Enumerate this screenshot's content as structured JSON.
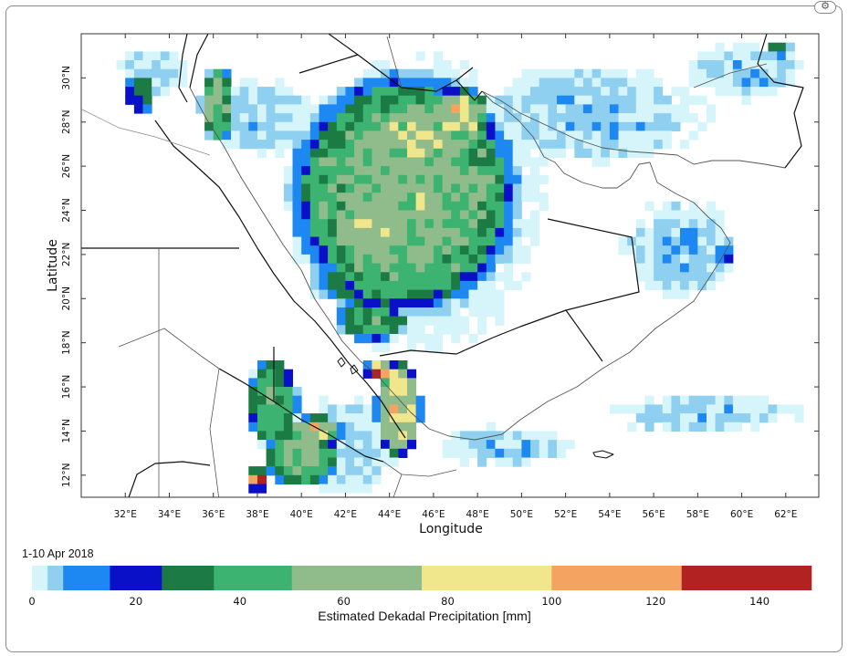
{
  "map": {
    "period": "1-10 Apr 2018",
    "y_axis_title": "Latitude",
    "x_axis_title": "Longitude",
    "lon_ticks": [
      "32°E",
      "34°E",
      "36°E",
      "38°E",
      "40°E",
      "42°E",
      "44°E",
      "46°E",
      "48°E",
      "50°E",
      "52°E",
      "54°E",
      "56°E",
      "58°E",
      "60°E",
      "62°E"
    ],
    "lat_ticks": [
      "12°N",
      "14°N",
      "16°N",
      "18°N",
      "20°N",
      "22°N",
      "24°N",
      "26°N",
      "28°N",
      "30°N"
    ],
    "lon_range": [
      30.0,
      63.5
    ],
    "lat_range": [
      11.0,
      32.0
    ]
  },
  "colorbar": {
    "title": "Estimated Dekadal Precipitation [mm]",
    "tick_labels": [
      "0",
      "20",
      "40",
      "60",
      "80",
      "100",
      "120",
      "140"
    ],
    "tick_values": [
      0,
      20,
      40,
      60,
      80,
      100,
      120,
      140
    ],
    "bins": [
      {
        "from": 0,
        "to": 3,
        "color": "#d6f5fa"
      },
      {
        "from": 3,
        "to": 6,
        "color": "#8fd0f0"
      },
      {
        "from": 6,
        "to": 15,
        "color": "#1e88f2"
      },
      {
        "from": 15,
        "to": 25,
        "color": "#0a10c8"
      },
      {
        "from": 25,
        "to": 35,
        "color": "#1c7a45"
      },
      {
        "from": 35,
        "to": 50,
        "color": "#3cb371"
      },
      {
        "from": 50,
        "to": 75,
        "color": "#8fbc8a"
      },
      {
        "from": 75,
        "to": 100,
        "color": "#f0e68c"
      },
      {
        "from": 100,
        "to": 125,
        "color": "#f4a460"
      },
      {
        "from": 125,
        "to": 150,
        "color": "#b22222"
      }
    ],
    "max": 150
  },
  "rain_regions": [
    {
      "lon": 44.5,
      "lat": 25.0,
      "rlon": 4.6,
      "rlat": 4.8,
      "value": 60
    },
    {
      "lon": 45.0,
      "lat": 27.5,
      "rlon": 2.8,
      "rlat": 1.4,
      "value": 70
    },
    {
      "lon": 47.0,
      "lat": 28.6,
      "rlon": 1.2,
      "rlat": 1.0,
      "value": 90
    },
    {
      "lon": 43.0,
      "lat": 23.2,
      "rlon": 1.6,
      "rlat": 0.9,
      "value": 82
    },
    {
      "lon": 44.0,
      "lat": 21.0,
      "rlon": 3.2,
      "rlat": 1.2,
      "value": 40
    },
    {
      "lon": 43.0,
      "lat": 19.2,
      "rlon": 1.4,
      "rlat": 0.8,
      "value": 45
    },
    {
      "lon": 44.2,
      "lat": 15.2,
      "rlon": 0.9,
      "rlat": 2.0,
      "value": 85
    },
    {
      "lon": 43.3,
      "lat": 17.0,
      "rlon": 0.5,
      "rlat": 0.4,
      "value": 130
    },
    {
      "lon": 38.5,
      "lat": 15.5,
      "rlon": 1.0,
      "rlat": 1.8,
      "value": 45
    },
    {
      "lon": 39.8,
      "lat": 13.0,
      "rlon": 1.5,
      "rlat": 1.2,
      "value": 60
    },
    {
      "lon": 40.5,
      "lat": 14.3,
      "rlon": 1.0,
      "rlat": 0.5,
      "value": 90
    },
    {
      "lon": 37.8,
      "lat": 12.0,
      "rlon": 0.5,
      "rlat": 0.4,
      "value": 130
    },
    {
      "lon": 36.0,
      "lat": 29.0,
      "rlon": 0.7,
      "rlat": 1.5,
      "value": 55
    },
    {
      "lon": 32.5,
      "lat": 29.5,
      "rlon": 0.6,
      "rlat": 0.8,
      "value": 35
    },
    {
      "lon": 61.5,
      "lat": 31.5,
      "rlon": 0.5,
      "rlat": 0.3,
      "value": 30
    },
    {
      "lon": 59.0,
      "lat": 22.2,
      "rlon": 0.4,
      "rlat": 0.3,
      "value": 18
    }
  ],
  "light_regions": [
    {
      "lon": 45.0,
      "lat": 24.5,
      "rlon": 6.5,
      "rlat": 7.5
    },
    {
      "lon": 53.0,
      "lat": 28.5,
      "rlon": 6.0,
      "rlat": 2.5
    },
    {
      "lon": 60.0,
      "lat": 30.5,
      "rlon": 3.0,
      "rlat": 1.5
    },
    {
      "lon": 38.0,
      "lat": 28.5,
      "rlon": 3.0,
      "rlat": 2.0
    },
    {
      "lon": 41.5,
      "lat": 13.5,
      "rlon": 3.0,
      "rlat": 2.5
    },
    {
      "lon": 49.0,
      "lat": 13.5,
      "rlon": 3.5,
      "rlat": 1.0
    },
    {
      "lon": 58.0,
      "lat": 15.0,
      "rlon": 5.0,
      "rlat": 1.0
    },
    {
      "lon": 33.0,
      "lat": 30.5,
      "rlon": 2.0,
      "rlat": 1.2
    },
    {
      "lon": 57.0,
      "lat": 22.5,
      "rlon": 3.0,
      "rlat": 2.5
    }
  ]
}
